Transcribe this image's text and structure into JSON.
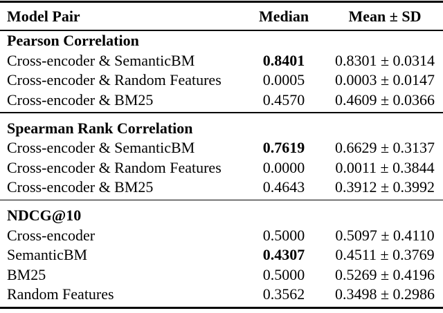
{
  "table": {
    "columns": {
      "model_pair": "Model Pair",
      "median": "Median",
      "mean_sd": "Mean ± SD"
    },
    "sections": [
      {
        "title": "Pearson Correlation",
        "rows": [
          {
            "model_pair": "Cross-encoder & SemanticBM",
            "median": "0.8401",
            "mean_sd": "0.8301 ± 0.0314"
          },
          {
            "model_pair": "Cross-encoder & Random Features",
            "median": "0.0005",
            "mean_sd": "0.0003 ± 0.0147"
          },
          {
            "model_pair": "Cross-encoder & BM25",
            "median": "0.4570",
            "mean_sd": "0.4609 ± 0.0366"
          }
        ]
      },
      {
        "title": "Spearman Rank Correlation",
        "rows": [
          {
            "model_pair": "Cross-encoder & SemanticBM",
            "median": "0.7619",
            "mean_sd": "0.6629 ± 0.3137"
          },
          {
            "model_pair": "Cross-encoder & Random Features",
            "median": "0.0000",
            "mean_sd": "0.0011 ± 0.3844"
          },
          {
            "model_pair": "Cross-encoder & BM25",
            "median": "0.4643",
            "mean_sd": "0.3912 ± 0.3992"
          }
        ]
      },
      {
        "title": "NDCG@10",
        "rows": [
          {
            "model_pair": "Cross-encoder",
            "median": "0.5000",
            "mean_sd": "0.5097 ± 0.4110"
          },
          {
            "model_pair": "SemanticBM",
            "median": "0.4307",
            "mean_sd": "0.4511 ± 0.3769"
          },
          {
            "model_pair": "BM25",
            "median": "0.5000",
            "mean_sd": "0.5269 ± 0.4196"
          },
          {
            "model_pair": "Random Features",
            "median": "0.3562",
            "mean_sd": "0.3498 ± 0.2986"
          }
        ]
      }
    ]
  }
}
